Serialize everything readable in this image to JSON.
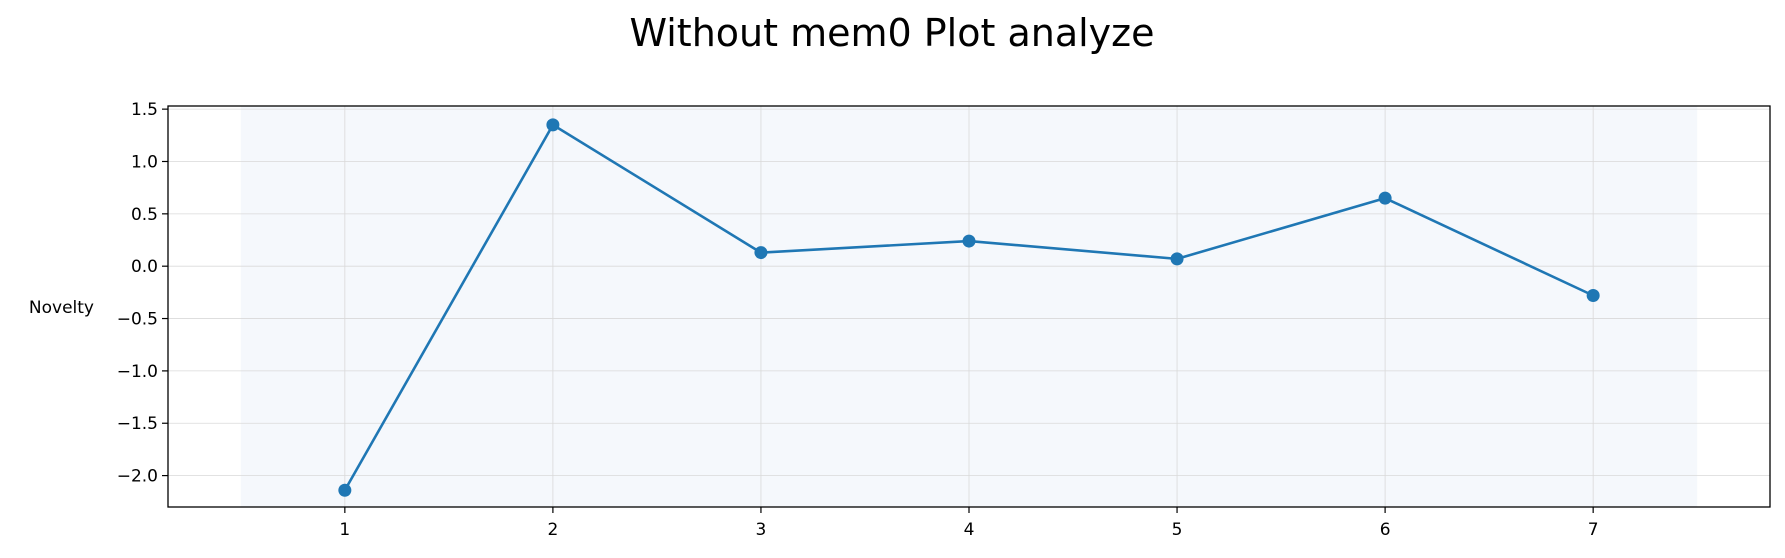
{
  "chart_data": {
    "type": "line",
    "title": "Without mem0 Plot analyze",
    "xlabel": "",
    "ylabel": "Novelty",
    "x": [
      1,
      2,
      3,
      4,
      5,
      6,
      7
    ],
    "series": [
      {
        "values": [
          -2.14,
          1.35,
          0.13,
          0.24,
          0.07,
          0.65,
          -0.28
        ],
        "color": "#1f77b4",
        "marker": "circle"
      }
    ],
    "xlim": [
      0.15,
      7.85
    ],
    "ylim": [
      -2.3,
      1.53
    ],
    "x_ticks": [
      "1",
      "2",
      "3",
      "4",
      "5",
      "6",
      "7"
    ],
    "y_ticks": [
      "−2.0",
      "−1.5",
      "−1.0",
      "−0.5",
      "0.0",
      "0.5",
      "1.0",
      "1.5"
    ],
    "y_tick_values": [
      -2.0,
      -1.5,
      -1.0,
      -0.5,
      0.0,
      0.5,
      1.0,
      1.5
    ],
    "shaded_x_range": [
      0.5,
      7.5
    ],
    "shaded_color": "#f5f8fc",
    "grid": true,
    "grid_color": "#d9d9d9"
  }
}
